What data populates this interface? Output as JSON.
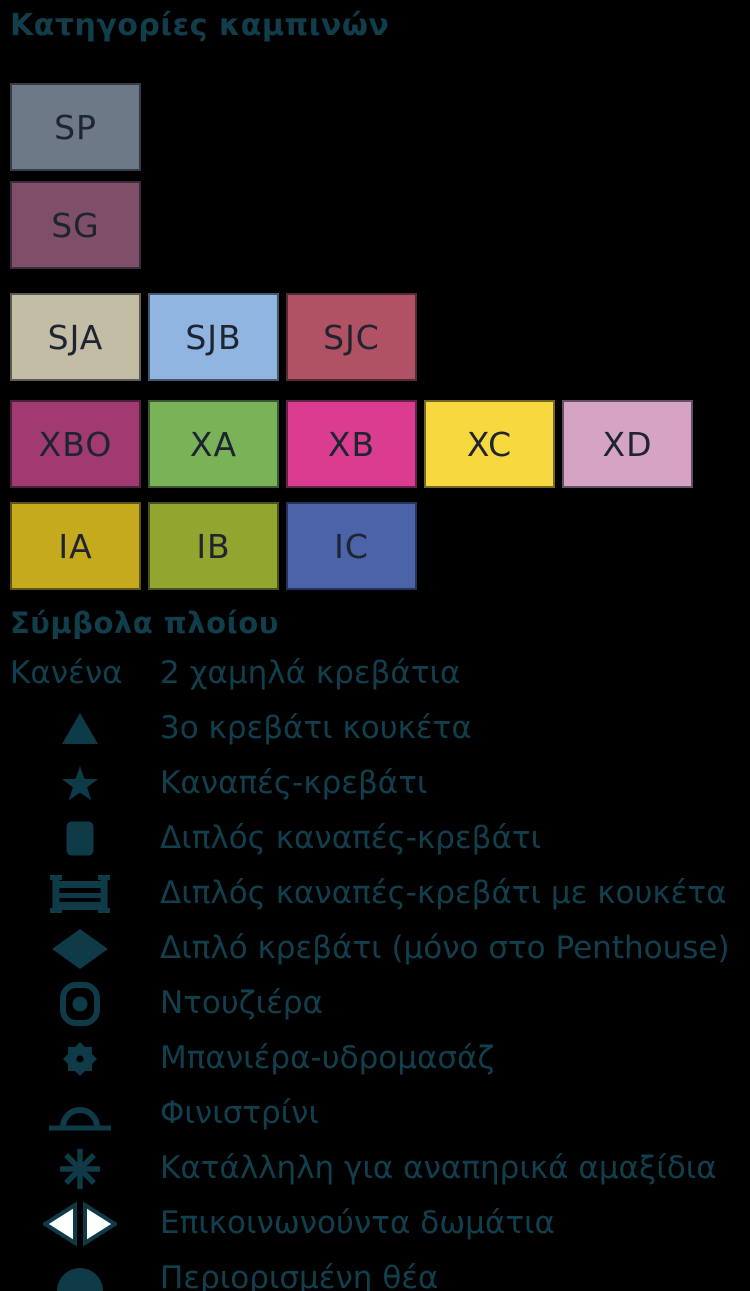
{
  "cabin_section": {
    "title": "Κατηγορίες καμπινών",
    "rows": [
      {
        "cabins": [
          {
            "code": "SP",
            "color": "#6e7987"
          }
        ]
      },
      {
        "cabins": [
          {
            "code": "SG",
            "color": "#7f4f6a"
          }
        ]
      },
      {
        "cabins": [
          {
            "code": "SJA",
            "color": "#c3bda6"
          },
          {
            "code": "SJB",
            "color": "#8fb5e0"
          },
          {
            "code": "SJC",
            "color": "#b05263"
          }
        ]
      },
      {
        "cabins": [
          {
            "code": "XBO",
            "color": "#a13a70"
          },
          {
            "code": "XA",
            "color": "#79b257"
          },
          {
            "code": "XB",
            "color": "#da3c90"
          },
          {
            "code": "XC",
            "color": "#f7d83e"
          },
          {
            "code": "XD",
            "color": "#d5a3c3"
          }
        ]
      },
      {
        "cabins": [
          {
            "code": "IA",
            "color": "#c5aa1d"
          },
          {
            "code": "IB",
            "color": "#92a52f"
          },
          {
            "code": "IC",
            "color": "#4a63a9"
          }
        ]
      }
    ]
  },
  "symbols_section": {
    "title": "Σύμβολα πλοίου",
    "items": [
      {
        "symbol": "none",
        "symbol_text": "Κανένα",
        "label": "2 χαμηλά κρεβάτια"
      },
      {
        "symbol": "triangle",
        "label": "3ο κρεβάτι κουκέτα"
      },
      {
        "symbol": "star",
        "label": "Καναπές-κρεβάτι"
      },
      {
        "symbol": "square",
        "label": "Διπλός καναπές-κρεβάτι"
      },
      {
        "symbol": "bunk",
        "label": "Διπλός καναπές-κρεβάτι με κουκέτα"
      },
      {
        "symbol": "diamond",
        "label": "Διπλό κρεβάτι (μόνο στο Penthouse)"
      },
      {
        "symbol": "shower",
        "label": "Ντουζιέρα"
      },
      {
        "symbol": "jacuzzi",
        "label": "Μπανιέρα-υδρομασάζ"
      },
      {
        "symbol": "porthole",
        "label": "Φινιστρίνι"
      },
      {
        "symbol": "wheelchair",
        "label": "Κατάλληλη για αναπηρικά αμαξίδια"
      },
      {
        "symbol": "communicating",
        "label": "Επικοινωνούντα δωμάτια"
      },
      {
        "symbol": "limited-view",
        "label": "Περιορισμένη θέα"
      }
    ]
  },
  "colors": {
    "background": "#000000",
    "heading_text": "#123d4b",
    "body_text": "#123f4e",
    "symbol_ink": "#0f3a48",
    "swatch_code_text": "#1e2430",
    "communicating_fill": "#ffffff"
  }
}
